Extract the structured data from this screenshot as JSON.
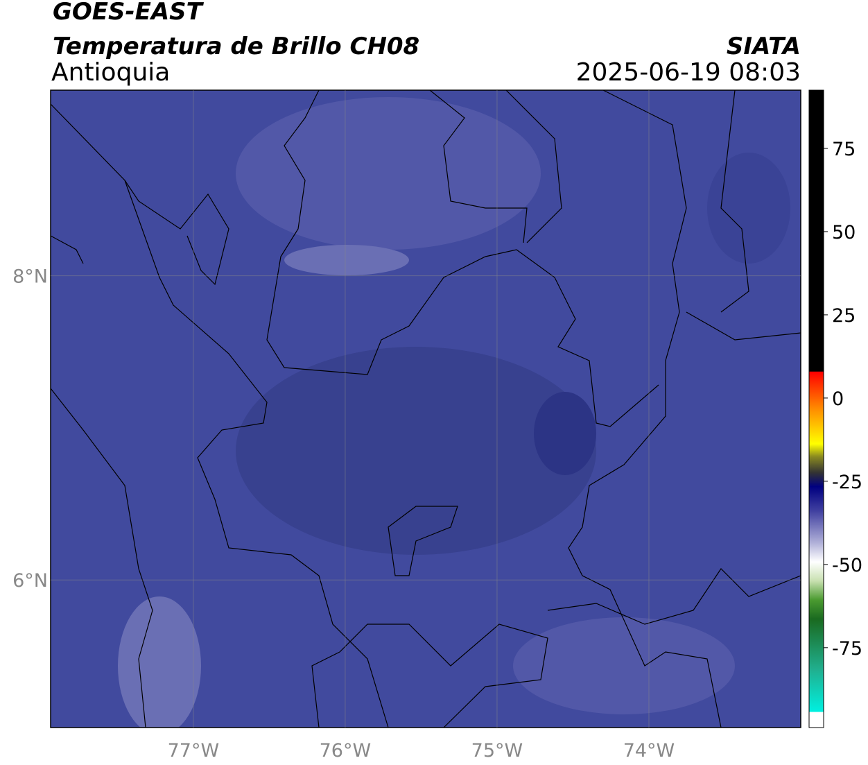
{
  "header": {
    "satellite": "GOES-EAST",
    "product": "Temperatura de Brillo CH08",
    "region": "Antioquia",
    "agency": "SIATA",
    "timestamp": "2025-06-19 08:03"
  },
  "map": {
    "lon_range": [
      -77.94,
      -73.0
    ],
    "lat_range": [
      5.03,
      9.22
    ],
    "lon_ticks": [
      {
        "value": -77,
        "label": "77°W"
      },
      {
        "value": -76,
        "label": "76°W"
      },
      {
        "value": -75,
        "label": "75°W"
      },
      {
        "value": -74,
        "label": "74°W"
      }
    ],
    "lat_ticks": [
      {
        "value": 8,
        "label": "8°N"
      },
      {
        "value": 6,
        "label": "6°N"
      }
    ],
    "grid": true
  },
  "colorbar": {
    "range": [
      -99,
      92.5
    ],
    "ticks": [
      75,
      50,
      25,
      0,
      -25,
      -50,
      -75
    ]
  }
}
